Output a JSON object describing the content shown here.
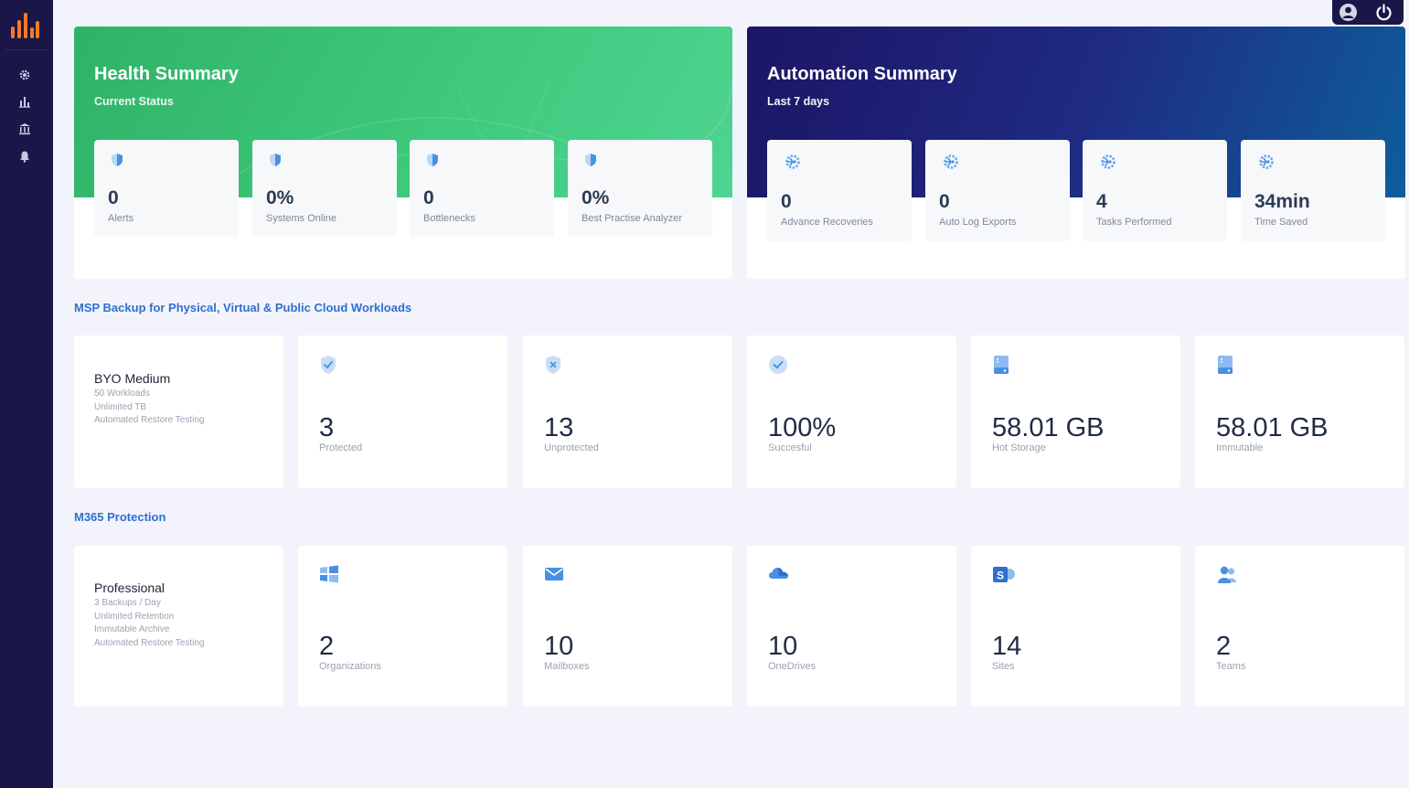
{
  "sidebar": {
    "logo": "bar-chart-logo",
    "items": [
      {
        "icon": "gear-icon"
      },
      {
        "icon": "reports-icon"
      },
      {
        "icon": "bank-icon"
      },
      {
        "icon": "bell-icon"
      }
    ]
  },
  "header": {
    "controls": [
      {
        "icon": "user-avatar-icon"
      },
      {
        "icon": "power-icon"
      }
    ]
  },
  "health_summary": {
    "title": "Health Summary",
    "subtitle": "Current Status",
    "stats": [
      {
        "value": "0",
        "label": "Alerts",
        "icon": "shield-icon"
      },
      {
        "value": "0%",
        "label": "Systems Online",
        "icon": "shield-icon"
      },
      {
        "value": "0",
        "label": "Bottlenecks",
        "icon": "shield-icon"
      },
      {
        "value": "0%",
        "label": "Best Practise Analyzer",
        "icon": "shield-icon"
      }
    ]
  },
  "automation_summary": {
    "title": "Automation Summary",
    "subtitle": "Last 7 days",
    "stats": [
      {
        "value": "0",
        "label": "Advance Recoveries",
        "icon": "automation-gear-icon"
      },
      {
        "value": "0",
        "label": "Auto Log Exports",
        "icon": "automation-gear-icon"
      },
      {
        "value": "4",
        "label": "Tasks Performed",
        "icon": "automation-gear-icon"
      },
      {
        "value": "34min",
        "label": "Time Saved",
        "icon": "automation-gear-icon"
      }
    ]
  },
  "msp_backup": {
    "title": "MSP Backup for Physical, Virtual & Public Cloud Workloads",
    "plan": {
      "name": "BYO Medium",
      "features": [
        "50 Workloads",
        "Unlimited TB",
        "Automated Restore Testing"
      ]
    },
    "stats": [
      {
        "value": "3",
        "label": "Protected",
        "icon": "shield-check-icon"
      },
      {
        "value": "13",
        "label": "Unprotected",
        "icon": "shield-x-icon"
      },
      {
        "value": "100%",
        "label": "Succesful",
        "icon": "check-circle-icon"
      },
      {
        "value": "58.01 GB",
        "label": "Hot Storage",
        "icon": "storage-icon"
      },
      {
        "value": "58.01 GB",
        "label": "Immutable",
        "icon": "storage-icon"
      }
    ]
  },
  "m365": {
    "title": "M365 Protection",
    "plan": {
      "name": "Professional",
      "features": [
        "3 Backups / Day",
        "Unlimited Retention",
        "Immutable Archive",
        "Automated Restore Testing"
      ]
    },
    "stats": [
      {
        "value": "2",
        "label": "Organizations",
        "icon": "windows-icon"
      },
      {
        "value": "10",
        "label": "Mailboxes",
        "icon": "mail-icon"
      },
      {
        "value": "10",
        "label": "OneDrives",
        "icon": "cloud-icon"
      },
      {
        "value": "14",
        "label": "Sites",
        "icon": "sharepoint-icon"
      },
      {
        "value": "2",
        "label": "Teams",
        "icon": "teams-icon"
      }
    ]
  },
  "colors": {
    "sidebar": "#1b1648",
    "accent_orange": "#f47a2a",
    "health_green": "#3ec97c",
    "automation_navy": "#1c1566",
    "section_blue": "#2f6fd0",
    "icon_blue": "#4a90e2"
  }
}
